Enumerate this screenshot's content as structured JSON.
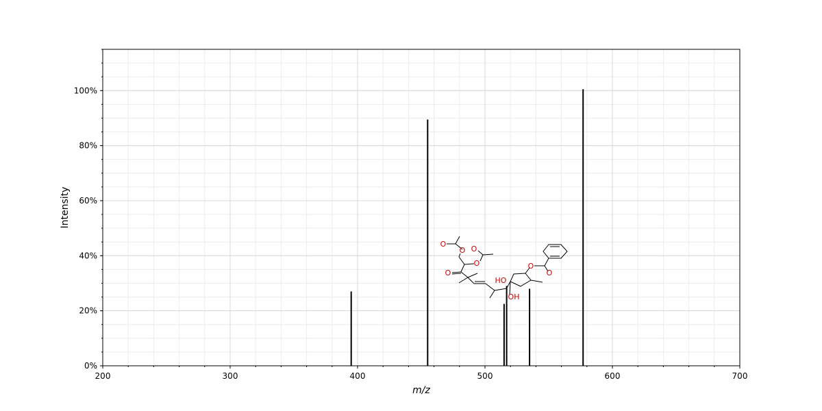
{
  "chart_data": {
    "type": "bar",
    "subtype": "mass-spectrum",
    "title": "",
    "xlabel": "m/z",
    "ylabel": "Intensity",
    "xlim": [
      200,
      700
    ],
    "ylim": [
      0,
      115
    ],
    "x_ticks": [
      200,
      300,
      400,
      500,
      600,
      700
    ],
    "x_tick_labels": [
      "200",
      "300",
      "400",
      "500",
      "600",
      "700"
    ],
    "y_ticks": [
      0,
      20,
      40,
      60,
      80,
      100
    ],
    "y_tick_labels": [
      "0%",
      "20%",
      "40%",
      "60%",
      "80%",
      "100%"
    ],
    "x_minor_step": 20,
    "y_minor_step": 5,
    "grid": true,
    "legend": "none",
    "peaks": [
      {
        "mz": 395,
        "intensity": 27
      },
      {
        "mz": 455,
        "intensity": 89.5
      },
      {
        "mz": 515,
        "intensity": 22.5
      },
      {
        "mz": 517,
        "intensity": 29
      },
      {
        "mz": 535,
        "intensity": 28
      },
      {
        "mz": 577,
        "intensity": 100.5
      }
    ],
    "bar_color": "#000000",
    "structure_inset": {
      "description": "molecule structure drawing",
      "atom_labels": [
        "O",
        "O",
        "O",
        "O",
        "O",
        "O",
        "O",
        "HO",
        "OH"
      ],
      "atom_label_color": "#cc0000",
      "bond_color": "#000000"
    }
  }
}
